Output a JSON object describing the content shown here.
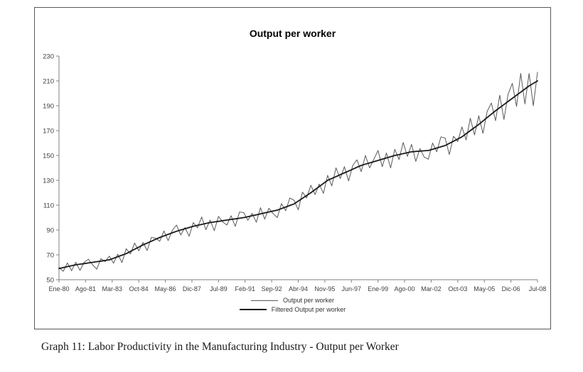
{
  "figure": {
    "title": "Output per worker",
    "caption": "Graph 11: Labor Productivity in the Manufacturing Industry - Output per Worker"
  },
  "chart_data": {
    "type": "line",
    "title": "Output per worker",
    "xlabel": "",
    "ylabel": "",
    "xlim": [
      1980,
      2008.5
    ],
    "ylim": [
      50,
      230
    ],
    "grid": false,
    "legend_position": "bottom",
    "colors": {
      "axis": "#808080",
      "text": "#3f3f3f",
      "figure_border": "#595959"
    },
    "y_ticks": [
      50,
      70,
      90,
      110,
      130,
      150,
      170,
      190,
      210,
      230
    ],
    "x_tick_labels": [
      "Ene-80",
      "Ago-81",
      "Mar-83",
      "Oct-84",
      "May-86",
      "Dic-87",
      "Jul-89",
      "Feb-91",
      "Sep-92",
      "Abr-94",
      "Nov-95",
      "Jun-97",
      "Ene-99",
      "Ago-00",
      "Mar-02",
      "Oct-03",
      "May-05",
      "Dic-06",
      "Jul-08"
    ],
    "x": [
      1980,
      1980.25,
      1980.5,
      1980.75,
      1981,
      1981.25,
      1981.5,
      1981.75,
      1982,
      1982.25,
      1982.5,
      1982.75,
      1983,
      1983.25,
      1983.5,
      1983.75,
      1984,
      1984.25,
      1984.5,
      1984.75,
      1985,
      1985.25,
      1985.5,
      1985.75,
      1986,
      1986.25,
      1986.5,
      1986.75,
      1987,
      1987.25,
      1987.5,
      1987.75,
      1988,
      1988.25,
      1988.5,
      1988.75,
      1989,
      1989.25,
      1989.5,
      1989.75,
      1990,
      1990.25,
      1990.5,
      1990.75,
      1991,
      1991.25,
      1991.5,
      1991.75,
      1992,
      1992.25,
      1992.5,
      1992.75,
      1993,
      1993.25,
      1993.5,
      1993.75,
      1994,
      1994.25,
      1994.5,
      1994.75,
      1995,
      1995.25,
      1995.5,
      1995.75,
      1996,
      1996.25,
      1996.5,
      1996.75,
      1997,
      1997.25,
      1997.5,
      1997.75,
      1998,
      1998.25,
      1998.5,
      1998.75,
      1999,
      1999.25,
      1999.5,
      1999.75,
      2000,
      2000.25,
      2000.5,
      2000.75,
      2001,
      2001.25,
      2001.5,
      2001.75,
      2002,
      2002.25,
      2002.5,
      2002.75,
      2003,
      2003.25,
      2003.5,
      2003.75,
      2004,
      2004.25,
      2004.5,
      2004.75,
      2005,
      2005.25,
      2005.5,
      2005.75,
      2006,
      2006.25,
      2006.5,
      2006.75,
      2007,
      2007.25,
      2007.5,
      2007.75,
      2008,
      2008.25,
      2008.5
    ],
    "series": [
      {
        "name": "Output per worker",
        "color": "#595959",
        "width": 1,
        "values": [
          60,
          56.75,
          63.5,
          57.25,
          64,
          57.5,
          64,
          66.5,
          62,
          58.5,
          67,
          64.5,
          69,
          63.25,
          70.5,
          63.75,
          75,
          70.75,
          79.5,
          73.25,
          80,
          73.5,
          84,
          83.5,
          81,
          89.25,
          81.5,
          89.75,
          94,
          86,
          92,
          85,
          96,
          91.75,
          100.5,
          90.25,
          98,
          89.5,
          101,
          96.5,
          94,
          101.5,
          93,
          104.5,
          104,
          97.75,
          103.5,
          96.25,
          108,
          98.75,
          107.5,
          103.25,
          100,
          111.25,
          105.5,
          115.75,
          114,
          106.25,
          120.5,
          115.75,
          126,
          118.5,
          127,
          119.5,
          134,
          125.5,
          140,
          131.5,
          141,
          129.5,
          142,
          146.5,
          137,
          150,
          140,
          147,
          154,
          141,
          152,
          140,
          155,
          146.75,
          160.5,
          149.25,
          159,
          145.25,
          155.5,
          148.75,
          147,
          160,
          153,
          165,
          164,
          150.75,
          165.5,
          161.25,
          173,
          162.5,
          180,
          166.5,
          182,
          167.75,
          185.5,
          192.25,
          178,
          198.5,
          179,
          199.5,
          208,
          189.5,
          216,
          191.5,
          216,
          190,
          217
        ]
      },
      {
        "name": "Filtered Output per worker",
        "color": "#1a1a1a",
        "width": 1.8,
        "values": [
          59,
          59.75,
          60.5,
          61.25,
          62,
          62.5,
          63,
          63.5,
          64,
          64.5,
          65,
          65.5,
          66,
          67.25,
          68.5,
          69.75,
          71,
          72.75,
          74.5,
          76.25,
          78,
          79.5,
          81,
          82.5,
          84,
          85.25,
          86.5,
          87.75,
          89,
          90,
          91,
          92,
          93,
          93.75,
          94.5,
          95.25,
          96,
          96.5,
          97,
          97.5,
          98,
          98.5,
          99,
          99.5,
          100,
          100.75,
          101.5,
          102.25,
          103,
          103.75,
          104.5,
          105.25,
          106,
          107.25,
          108.5,
          109.75,
          111,
          113.25,
          115.5,
          117.75,
          120,
          122.5,
          125,
          127.5,
          130,
          131.5,
          133,
          134.5,
          136,
          137.5,
          139,
          140.5,
          142,
          143,
          144,
          145,
          146,
          147,
          148,
          149,
          150,
          150.75,
          151.5,
          152.25,
          153,
          153.25,
          153.5,
          153.75,
          154,
          155,
          156,
          157,
          158,
          159.75,
          161.5,
          163.25,
          165,
          167.5,
          170,
          172.5,
          175,
          177.75,
          180.5,
          183.25,
          186,
          188.5,
          191,
          193.5,
          196,
          198.5,
          201,
          203.5,
          206,
          208,
          210
        ]
      }
    ]
  }
}
